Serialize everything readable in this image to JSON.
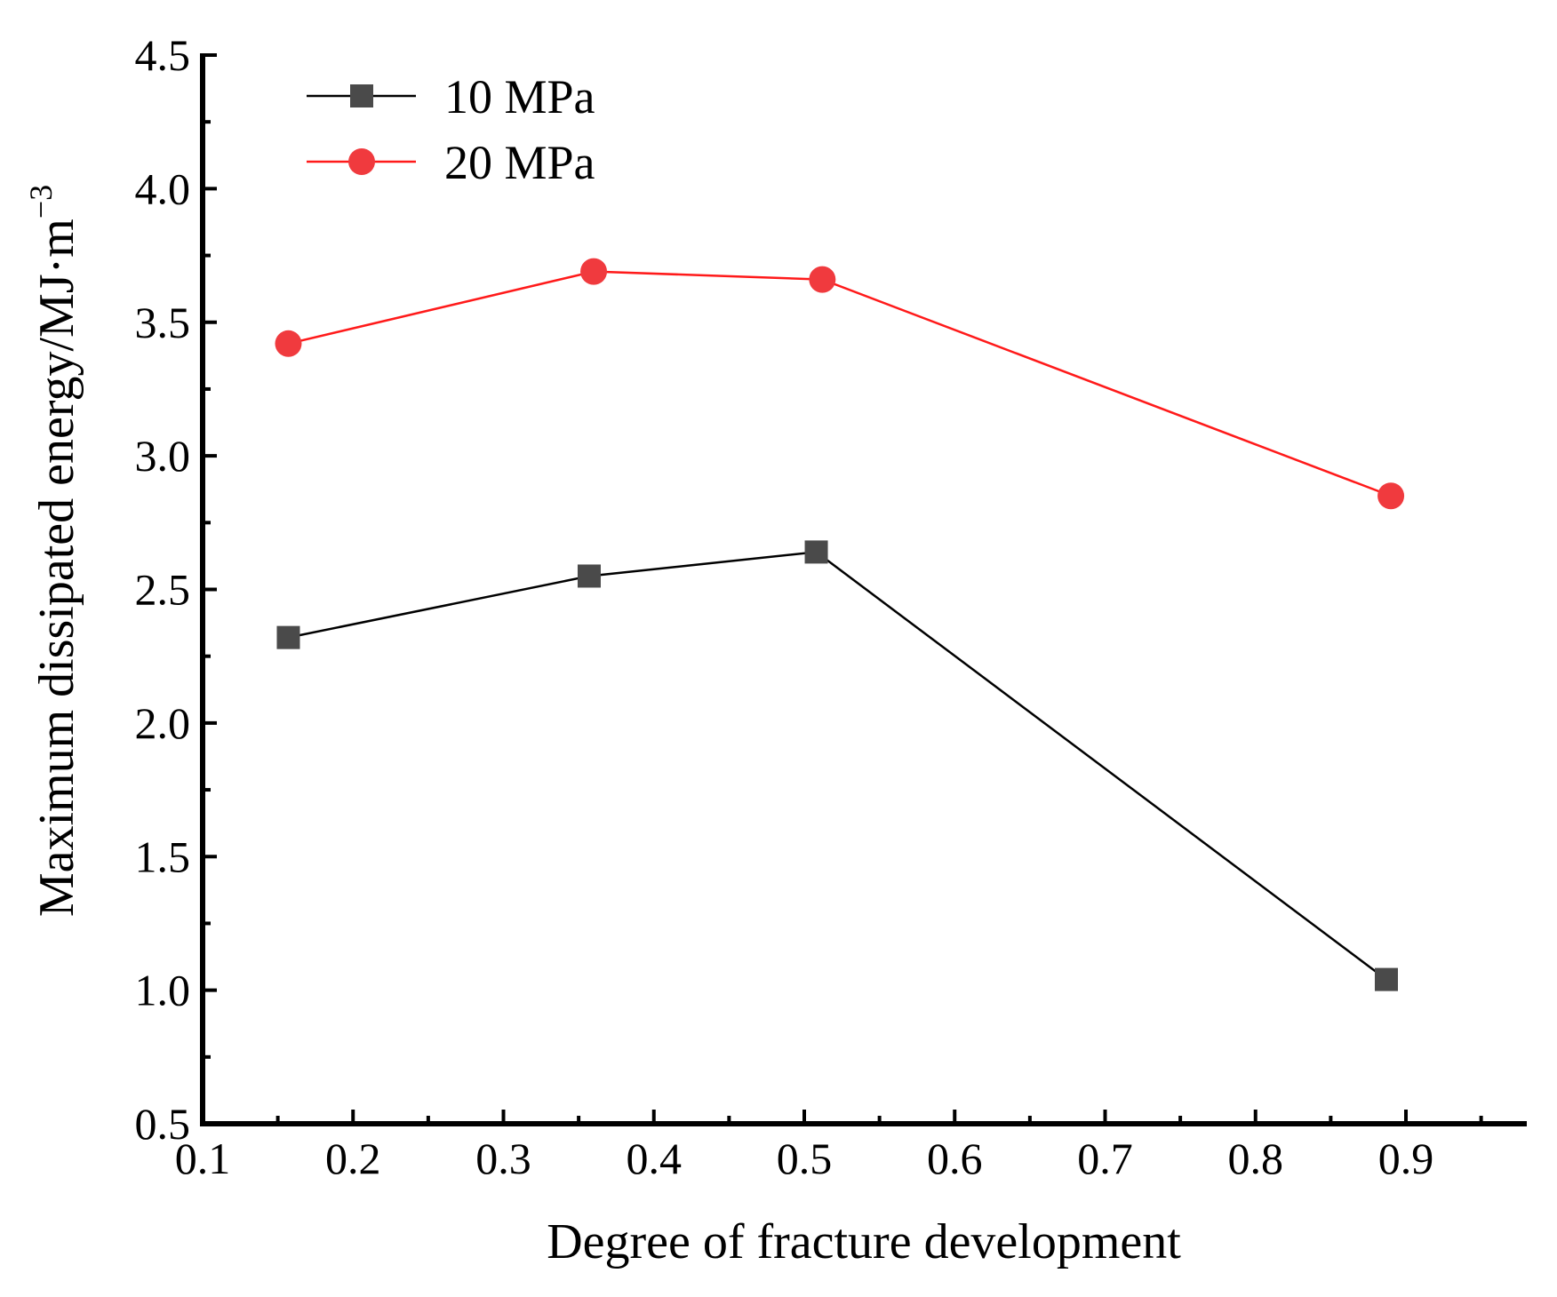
{
  "chart_data": {
    "type": "line",
    "title": "",
    "xlabel": "Degree of fracture development",
    "ylabel_main": "Maximum dissipated energy/MJ·m",
    "ylabel_superscript": "−3",
    "xlim": [
      0.1,
      0.95
    ],
    "ylim": [
      0.5,
      4.5
    ],
    "xticks": [
      0.1,
      0.2,
      0.3,
      0.4,
      0.5,
      0.6,
      0.7,
      0.8,
      0.9
    ],
    "xtick_labels": [
      "0.1",
      "0.2",
      "0.3",
      "0.4",
      "0.5",
      "0.6",
      "0.7",
      "0.8",
      "0.9"
    ],
    "yticks": [
      0.5,
      1.0,
      1.5,
      2.0,
      2.5,
      3.0,
      3.5,
      4.0,
      4.5
    ],
    "ytick_labels": [
      "0.5",
      "1.0",
      "1.5",
      "2.0",
      "2.5",
      "3.0",
      "3.5",
      "4.0",
      "4.5"
    ],
    "grid": false,
    "legend_position": "top-left",
    "series": [
      {
        "name": "10 MPa",
        "color": "#000000",
        "marker_color": "#4a4a4a",
        "marker": "square",
        "x": [
          0.157,
          0.357,
          0.508,
          0.887
        ],
        "y": [
          2.32,
          2.55,
          2.64,
          1.04
        ]
      },
      {
        "name": "20 MPa",
        "color": "#ff1a1a",
        "marker_color": "#f03a3e",
        "marker": "circle",
        "x": [
          0.157,
          0.36,
          0.512,
          0.89
        ],
        "y": [
          3.42,
          3.69,
          3.66,
          2.85
        ]
      }
    ]
  }
}
